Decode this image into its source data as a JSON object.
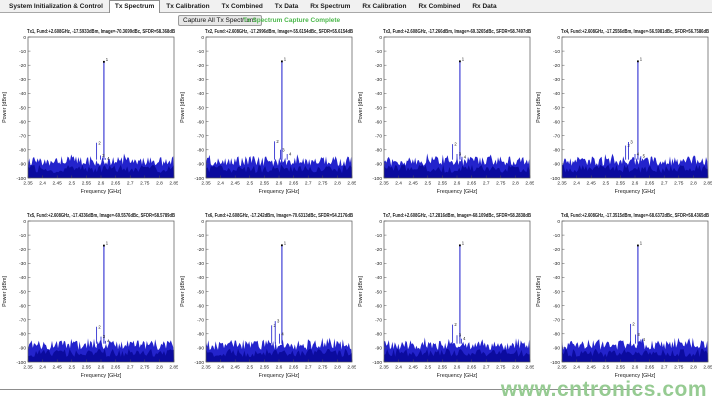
{
  "tabs": {
    "items": [
      "System Initialization & Control",
      "Tx Spectrum",
      "Tx Calibration",
      "Tx Combined",
      "Tx Data",
      "Rx Spectrum",
      "Rx Calibration",
      "Rx Combined",
      "Rx Data"
    ],
    "selected": "Tx Spectrum"
  },
  "toolbar": {
    "capture_button": "Capture All Tx Spectrums",
    "status": "Tx Spectrum Capture Complete",
    "status_color": "#4cb84c"
  },
  "watermark": {
    "text": "www.cntronics.com",
    "color": "#96cb92"
  },
  "colors": {
    "trace_blue": "#1a1acc",
    "noise_fill": "#1717c9",
    "noise_dark": "#0b0b9e",
    "axis": "#555555",
    "title_text": "#1a1a1a"
  },
  "chart_data": [
    {
      "type": "line",
      "channel": "Tx1",
      "title": "Tx1, Fund:+2.608GHz, -17.5933dBm, Image=-70.3699dBc, SFDR=58.368dB",
      "xlabel": "Frequency [GHz]",
      "ylabel": "Power [dBm]",
      "xlim": [
        2.35,
        2.85
      ],
      "ylim": [
        -100,
        0
      ],
      "grid": false,
      "xticks": [
        2.35,
        2.4,
        2.45,
        2.5,
        2.55,
        2.6,
        2.65,
        2.7,
        2.75,
        2.8,
        2.85
      ],
      "yticks": [
        0,
        -10,
        -20,
        -30,
        -40,
        -50,
        -60,
        -70,
        -80,
        -90,
        -100
      ],
      "fund": {
        "freq_ghz": 2.61,
        "power_dbm": -17.5933,
        "label": "1"
      },
      "image_dbc": -70.3699,
      "sfdr_db": 58.368,
      "spurs": [
        {
          "freq_ghz": 2.585,
          "power_dbm": -75.0,
          "label": "2"
        },
        {
          "freq_ghz": 2.598,
          "power_dbm": -84.0,
          "label": "3"
        },
        {
          "freq_ghz": 2.615,
          "power_dbm": -86.0,
          "label": "4"
        }
      ],
      "noise_floor_dbm": {
        "min": -100,
        "top_mean": -88,
        "top_jitter": 7
      }
    },
    {
      "type": "line",
      "channel": "Tx2",
      "title": "Tx2, Fund:+2.608GHz, -17.2996dBm, Image=-55.6154dBc, SFDR=55.6154dB",
      "xlabel": "Frequency [GHz]",
      "ylabel": "Power [dBm]",
      "xlim": [
        2.35,
        2.85
      ],
      "ylim": [
        -100,
        0
      ],
      "grid": false,
      "xticks": [
        2.35,
        2.4,
        2.45,
        2.5,
        2.55,
        2.6,
        2.65,
        2.7,
        2.75,
        2.8,
        2.85
      ],
      "yticks": [
        0,
        -10,
        -20,
        -30,
        -40,
        -50,
        -60,
        -70,
        -80,
        -90,
        -100
      ],
      "fund": {
        "freq_ghz": 2.61,
        "power_dbm": -17.2996,
        "label": "1"
      },
      "image_dbc": -55.6154,
      "sfdr_db": 55.6154,
      "spurs": [
        {
          "freq_ghz": 2.585,
          "power_dbm": -74.0,
          "label": "2"
        },
        {
          "freq_ghz": 2.605,
          "power_dbm": -80.0,
          "label": "3"
        },
        {
          "freq_ghz": 2.628,
          "power_dbm": -83.0,
          "label": "4"
        }
      ],
      "noise_floor_dbm": {
        "min": -100,
        "top_mean": -88,
        "top_jitter": 7
      }
    },
    {
      "type": "line",
      "channel": "Tx3",
      "title": "Tx3, Fund:+2.608GHz, -17.266dBm, Image=-69.3265dBc, SFDR=58.7497dB",
      "xlabel": "Frequency [GHz]",
      "ylabel": "Power [dBm]",
      "xlim": [
        2.35,
        2.85
      ],
      "ylim": [
        -100,
        0
      ],
      "grid": false,
      "xticks": [
        2.35,
        2.4,
        2.45,
        2.5,
        2.55,
        2.6,
        2.65,
        2.7,
        2.75,
        2.8,
        2.85
      ],
      "yticks": [
        0,
        -10,
        -20,
        -30,
        -40,
        -50,
        -60,
        -70,
        -80,
        -90,
        -100
      ],
      "fund": {
        "freq_ghz": 2.61,
        "power_dbm": -17.266,
        "label": "1"
      },
      "image_dbc": -69.3265,
      "sfdr_db": 58.7497,
      "spurs": [
        {
          "freq_ghz": 2.585,
          "power_dbm": -76.0,
          "label": "2"
        },
        {
          "freq_ghz": 2.6,
          "power_dbm": -83.0,
          "label": "3"
        },
        {
          "freq_ghz": 2.617,
          "power_dbm": -85.0,
          "label": "4"
        }
      ],
      "noise_floor_dbm": {
        "min": -100,
        "top_mean": -88,
        "top_jitter": 7
      }
    },
    {
      "type": "line",
      "channel": "Tx4",
      "title": "Tx4, Fund:+2.608GHz, -17.2556dBm, Image=-56.5981dBc, SFDR=56.7586dB",
      "xlabel": "Frequency [GHz]",
      "ylabel": "Power [dBm]",
      "xlim": [
        2.35,
        2.85
      ],
      "ylim": [
        -100,
        0
      ],
      "grid": false,
      "xticks": [
        2.35,
        2.4,
        2.45,
        2.5,
        2.55,
        2.6,
        2.65,
        2.7,
        2.75,
        2.8,
        2.85
      ],
      "yticks": [
        0,
        -10,
        -20,
        -30,
        -40,
        -50,
        -60,
        -70,
        -80,
        -90,
        -100
      ],
      "fund": {
        "freq_ghz": 2.61,
        "power_dbm": -17.2556,
        "label": "1"
      },
      "image_dbc": -56.5981,
      "sfdr_db": 56.7586,
      "spurs": [
        {
          "freq_ghz": 2.568,
          "power_dbm": -77.0,
          "label": "2"
        },
        {
          "freq_ghz": 2.578,
          "power_dbm": -74.5,
          "label": "3"
        },
        {
          "freq_ghz": 2.6,
          "power_dbm": -83.0,
          "label": "4"
        },
        {
          "freq_ghz": 2.62,
          "power_dbm": -84.5,
          "label": "5"
        }
      ],
      "noise_floor_dbm": {
        "min": -100,
        "top_mean": -88,
        "top_jitter": 7
      }
    },
    {
      "type": "line",
      "channel": "Tx5",
      "title": "Tx5, Fund:+2.608GHz, -17.4336dBm, Image=-69.5576dBc, SFDR=58.5789dB",
      "xlabel": "Frequency [GHz]",
      "ylabel": "Power [dBm]",
      "xlim": [
        2.35,
        2.85
      ],
      "ylim": [
        -100,
        0
      ],
      "grid": false,
      "xticks": [
        2.35,
        2.4,
        2.45,
        2.5,
        2.55,
        2.6,
        2.65,
        2.7,
        2.75,
        2.8,
        2.85
      ],
      "yticks": [
        0,
        -10,
        -20,
        -30,
        -40,
        -50,
        -60,
        -70,
        -80,
        -90,
        -100
      ],
      "fund": {
        "freq_ghz": 2.61,
        "power_dbm": -17.4336,
        "label": "1"
      },
      "image_dbc": -69.5576,
      "sfdr_db": 58.5789,
      "spurs": [
        {
          "freq_ghz": 2.585,
          "power_dbm": -75.0,
          "label": "2"
        },
        {
          "freq_ghz": 2.6,
          "power_dbm": -82.0,
          "label": "3"
        },
        {
          "freq_ghz": 2.615,
          "power_dbm": -85.0,
          "label": "4"
        }
      ],
      "noise_floor_dbm": {
        "min": -100,
        "top_mean": -88,
        "top_jitter": 7
      }
    },
    {
      "type": "line",
      "channel": "Tx6",
      "title": "Tx6, Fund:+2.608GHz, -17.242dBm, Image=-70.6313dBc, SFDR=54.2176dB",
      "xlabel": "Frequency [GHz]",
      "ylabel": "Power [dBm]",
      "xlim": [
        2.35,
        2.85
      ],
      "ylim": [
        -100,
        0
      ],
      "grid": false,
      "xticks": [
        2.35,
        2.4,
        2.45,
        2.5,
        2.55,
        2.6,
        2.65,
        2.7,
        2.75,
        2.8,
        2.85
      ],
      "yticks": [
        0,
        -10,
        -20,
        -30,
        -40,
        -50,
        -60,
        -70,
        -80,
        -90,
        -100
      ],
      "fund": {
        "freq_ghz": 2.61,
        "power_dbm": -17.242,
        "label": "1"
      },
      "image_dbc": -70.6313,
      "sfdr_db": 54.2176,
      "spurs": [
        {
          "freq_ghz": 2.575,
          "power_dbm": -74.0,
          "label": "2"
        },
        {
          "freq_ghz": 2.587,
          "power_dbm": -71.0,
          "label": "3"
        },
        {
          "freq_ghz": 2.602,
          "power_dbm": -80.0,
          "label": "4"
        }
      ],
      "noise_floor_dbm": {
        "min": -100,
        "top_mean": -88,
        "top_jitter": 7
      }
    },
    {
      "type": "line",
      "channel": "Tx7",
      "title": "Tx7, Fund:+2.608GHz, -17.2816dBm, Image=-68.109dBc, SFDR=58.2838dB",
      "xlabel": "Frequency [GHz]",
      "ylabel": "Power [dBm]",
      "xlim": [
        2.35,
        2.85
      ],
      "ylim": [
        -100,
        0
      ],
      "grid": false,
      "xticks": [
        2.35,
        2.4,
        2.45,
        2.5,
        2.55,
        2.6,
        2.65,
        2.7,
        2.75,
        2.8,
        2.85
      ],
      "yticks": [
        0,
        -10,
        -20,
        -30,
        -40,
        -50,
        -60,
        -70,
        -80,
        -90,
        -100
      ],
      "fund": {
        "freq_ghz": 2.61,
        "power_dbm": -17.2816,
        "label": "1"
      },
      "image_dbc": -68.109,
      "sfdr_db": 58.2838,
      "spurs": [
        {
          "freq_ghz": 2.585,
          "power_dbm": -73.5,
          "label": "2"
        },
        {
          "freq_ghz": 2.6,
          "power_dbm": -81.0,
          "label": "3"
        },
        {
          "freq_ghz": 2.615,
          "power_dbm": -83.5,
          "label": "4"
        }
      ],
      "noise_floor_dbm": {
        "min": -100,
        "top_mean": -88,
        "top_jitter": 7
      }
    },
    {
      "type": "line",
      "channel": "Tx8",
      "title": "Tx8, Fund:+2.608GHz, -17.3515dBm, Image=-68.6372dBc, SFDR=58.4365dB",
      "xlabel": "Frequency [GHz]",
      "ylabel": "Power [dBm]",
      "xlim": [
        2.35,
        2.85
      ],
      "ylim": [
        -100,
        0
      ],
      "grid": false,
      "xticks": [
        2.35,
        2.4,
        2.45,
        2.5,
        2.55,
        2.6,
        2.65,
        2.7,
        2.75,
        2.8,
        2.85
      ],
      "yticks": [
        0,
        -10,
        -20,
        -30,
        -40,
        -50,
        -60,
        -70,
        -80,
        -90,
        -100
      ],
      "fund": {
        "freq_ghz": 2.61,
        "power_dbm": -17.3515,
        "label": "1"
      },
      "image_dbc": -68.6372,
      "sfdr_db": 58.4365,
      "spurs": [
        {
          "freq_ghz": 2.585,
          "power_dbm": -73.0,
          "label": "2"
        },
        {
          "freq_ghz": 2.602,
          "power_dbm": -80.5,
          "label": "3"
        },
        {
          "freq_ghz": 2.62,
          "power_dbm": -84.0,
          "label": "4"
        }
      ],
      "noise_floor_dbm": {
        "min": -100,
        "top_mean": -88,
        "top_jitter": 7
      }
    }
  ]
}
